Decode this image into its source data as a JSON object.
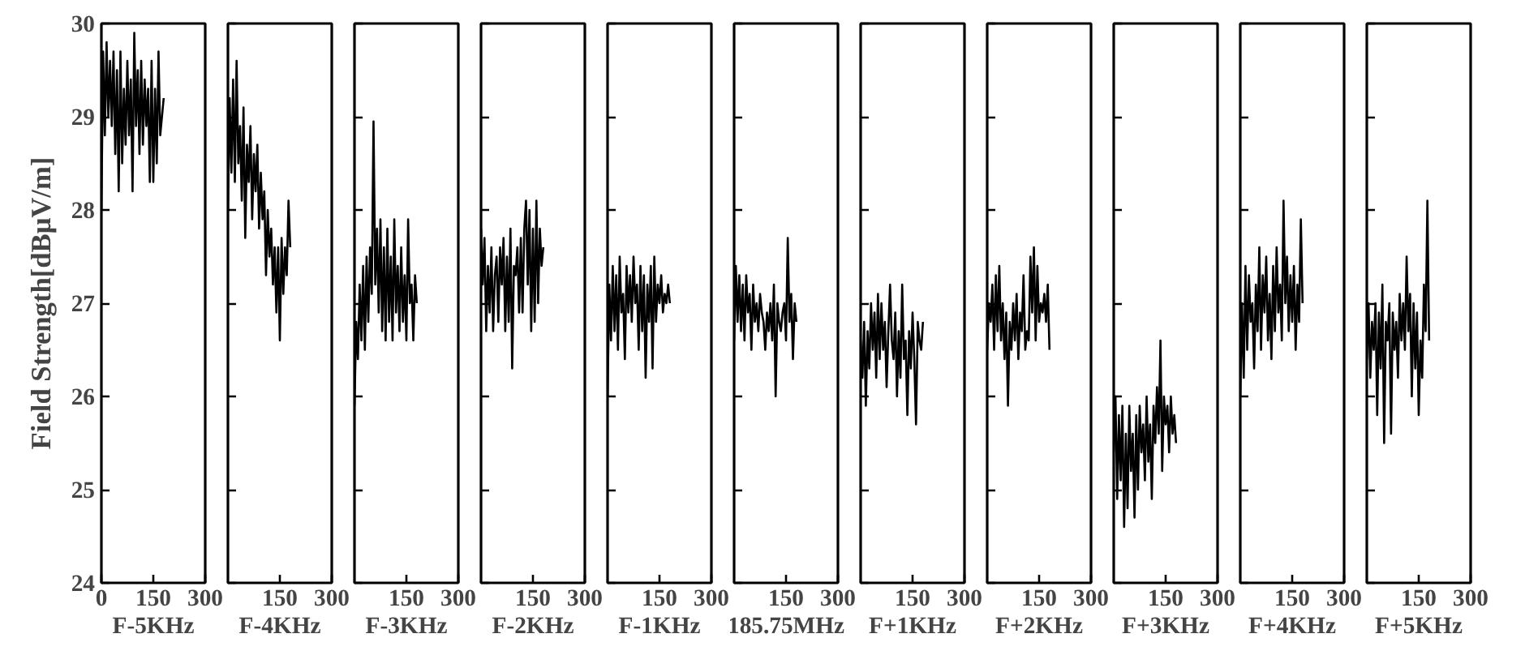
{
  "chart_data": [
    {
      "type": "line",
      "xlabel": "F-5KHz",
      "ylabel": "Field Strength[dBμV/m]",
      "xlim": [
        0,
        300
      ],
      "xticks": [
        0,
        150,
        300
      ],
      "ylim": [
        24,
        30
      ],
      "yticks": [
        24,
        25,
        26,
        27,
        28,
        29,
        30
      ],
      "grid": false,
      "x": [
        0,
        5,
        10,
        15,
        20,
        25,
        30,
        35,
        40,
        45,
        50,
        55,
        60,
        65,
        70,
        75,
        80,
        85,
        90,
        95,
        100,
        105,
        110,
        115,
        120,
        125,
        130,
        135,
        140,
        145,
        150,
        155,
        160,
        165,
        170,
        175,
        180
      ],
      "series": [
        {
          "color": "#000000",
          "values": [
            28.0,
            29.7,
            28.8,
            29.8,
            29.0,
            29.6,
            28.9,
            29.7,
            28.6,
            29.5,
            28.2,
            29.7,
            28.5,
            29.3,
            28.7,
            29.6,
            28.8,
            29.4,
            28.2,
            29.9,
            28.9,
            29.5,
            28.6,
            29.6,
            28.7,
            29.4,
            28.9,
            29.3,
            28.3,
            29.6,
            28.3,
            29.3,
            28.5,
            29.7,
            28.8,
            29.0,
            29.2
          ]
        }
      ]
    },
    {
      "type": "line",
      "xlabel": "F-4KHz",
      "xlim": [
        0,
        300
      ],
      "xticks": [
        150,
        300
      ],
      "ylim": [
        24,
        30
      ],
      "yticks": [
        24,
        25,
        26,
        27,
        28,
        29,
        30
      ],
      "tick_labels": "x",
      "grid": false,
      "x": [
        0,
        5,
        10,
        15,
        20,
        25,
        30,
        35,
        40,
        45,
        50,
        55,
        60,
        65,
        70,
        75,
        80,
        85,
        90,
        95,
        100,
        105,
        110,
        115,
        120,
        125,
        130,
        135,
        140,
        145,
        150,
        155,
        160,
        165,
        170,
        175,
        180
      ],
      "series": [
        {
          "color": "#000000",
          "values": [
            28.0,
            29.2,
            28.4,
            29.4,
            28.3,
            29.6,
            28.5,
            28.9,
            28.1,
            29.1,
            27.7,
            28.7,
            28.3,
            28.9,
            27.9,
            28.6,
            28.2,
            28.7,
            27.8,
            28.4,
            27.9,
            28.2,
            27.3,
            28.0,
            27.5,
            27.8,
            27.2,
            27.6,
            26.9,
            27.6,
            26.6,
            27.7,
            27.1,
            27.6,
            27.3,
            28.1,
            27.6
          ]
        }
      ]
    },
    {
      "type": "line",
      "xlabel": "F-3KHz",
      "xlim": [
        0,
        300
      ],
      "xticks": [
        150,
        300
      ],
      "ylim": [
        24,
        30
      ],
      "yticks": [
        24,
        25,
        26,
        27,
        28,
        29,
        30
      ],
      "tick_labels": "x",
      "grid": false,
      "x": [
        0,
        5,
        10,
        15,
        20,
        25,
        30,
        35,
        40,
        45,
        50,
        55,
        60,
        65,
        70,
        75,
        80,
        85,
        90,
        95,
        100,
        105,
        110,
        115,
        120,
        125,
        130,
        135,
        140,
        145,
        150,
        155,
        160,
        165,
        170,
        175,
        180
      ],
      "series": [
        {
          "color": "#000000",
          "values": [
            25.9,
            26.8,
            26.4,
            27.2,
            26.6,
            27.4,
            26.5,
            27.5,
            26.8,
            27.6,
            27.1,
            28.95,
            27.2,
            27.8,
            26.9,
            27.9,
            26.7,
            27.6,
            26.6,
            27.8,
            26.8,
            27.5,
            26.6,
            27.9,
            26.9,
            27.4,
            26.7,
            27.6,
            26.8,
            27.3,
            26.6,
            27.9,
            27.0,
            27.2,
            26.6,
            27.3,
            27.0
          ]
        }
      ]
    },
    {
      "type": "line",
      "xlabel": "F-2KHz",
      "xlim": [
        0,
        300
      ],
      "xticks": [
        150,
        300
      ],
      "ylim": [
        24,
        30
      ],
      "yticks": [
        24,
        25,
        26,
        27,
        28,
        29,
        30
      ],
      "tick_labels": "x",
      "grid": false,
      "x": [
        0,
        5,
        10,
        15,
        20,
        25,
        30,
        35,
        40,
        45,
        50,
        55,
        60,
        65,
        70,
        75,
        80,
        85,
        90,
        95,
        100,
        105,
        110,
        115,
        120,
        125,
        130,
        135,
        140,
        145,
        150,
        155,
        160,
        165,
        170,
        175,
        180
      ],
      "series": [
        {
          "color": "#000000",
          "values": [
            27.8,
            27.2,
            27.7,
            26.7,
            27.4,
            26.9,
            27.6,
            26.7,
            27.3,
            27.5,
            26.8,
            27.6,
            27.2,
            27.7,
            26.7,
            27.5,
            26.8,
            27.8,
            26.3,
            27.4,
            27.3,
            27.6,
            26.9,
            27.7,
            26.9,
            27.8,
            28.1,
            27.2,
            28.0,
            26.7,
            27.8,
            26.8,
            28.1,
            27.0,
            27.8,
            27.4,
            27.6
          ]
        }
      ]
    },
    {
      "type": "line",
      "xlabel": "F-1KHz",
      "xlim": [
        0,
        300
      ],
      "xticks": [
        150,
        300
      ],
      "ylim": [
        24,
        30
      ],
      "yticks": [
        24,
        25,
        26,
        27,
        28,
        29,
        30
      ],
      "tick_labels": "x",
      "grid": false,
      "x": [
        0,
        5,
        10,
        15,
        20,
        25,
        30,
        35,
        40,
        45,
        50,
        55,
        60,
        65,
        70,
        75,
        80,
        85,
        90,
        95,
        100,
        105,
        110,
        115,
        120,
        125,
        130,
        135,
        140,
        145,
        150,
        155,
        160,
        165,
        170,
        175,
        180
      ],
      "series": [
        {
          "color": "#000000",
          "values": [
            26.0,
            27.2,
            26.6,
            27.4,
            26.7,
            27.3,
            26.5,
            27.5,
            26.9,
            27.1,
            26.4,
            27.4,
            26.9,
            27.3,
            26.8,
            27.5,
            27.0,
            27.2,
            26.5,
            27.4,
            26.7,
            27.3,
            26.2,
            27.2,
            26.8,
            27.4,
            26.3,
            27.5,
            26.8,
            27.2,
            27.0,
            27.3,
            26.9,
            27.1,
            27.0,
            27.2,
            27.0
          ]
        }
      ]
    },
    {
      "type": "line",
      "xlabel": "185.75MHz",
      "xlim": [
        0,
        300
      ],
      "xticks": [
        150,
        300
      ],
      "ylim": [
        24,
        30
      ],
      "yticks": [
        24,
        25,
        26,
        27,
        28,
        29,
        30
      ],
      "tick_labels": "x",
      "grid": false,
      "x": [
        0,
        5,
        10,
        15,
        20,
        25,
        30,
        35,
        40,
        45,
        50,
        55,
        60,
        65,
        70,
        75,
        80,
        85,
        90,
        95,
        100,
        105,
        110,
        115,
        120,
        125,
        130,
        135,
        140,
        145,
        150,
        155,
        160,
        165,
        170,
        175,
        180
      ],
      "series": [
        {
          "color": "#000000",
          "values": [
            26.6,
            27.4,
            26.8,
            27.3,
            26.7,
            27.2,
            26.6,
            27.3,
            26.9,
            27.1,
            26.5,
            27.2,
            26.8,
            27.0,
            26.7,
            27.1,
            26.9,
            26.8,
            26.5,
            26.9,
            26.7,
            27.0,
            26.6,
            27.2,
            26.0,
            27.0,
            26.8,
            26.7,
            26.9,
            27.0,
            26.6,
            27.7,
            26.8,
            27.1,
            26.4,
            27.0,
            26.8
          ]
        }
      ]
    },
    {
      "type": "line",
      "xlabel": "F+1KHz",
      "xlim": [
        0,
        300
      ],
      "xticks": [
        150,
        300
      ],
      "ylim": [
        24,
        30
      ],
      "yticks": [
        24,
        25,
        26,
        27,
        28,
        29,
        30
      ],
      "tick_labels": "x",
      "grid": false,
      "x": [
        0,
        5,
        10,
        15,
        20,
        25,
        30,
        35,
        40,
        45,
        50,
        55,
        60,
        65,
        70,
        75,
        80,
        85,
        90,
        95,
        100,
        105,
        110,
        115,
        120,
        125,
        130,
        135,
        140,
        145,
        150,
        155,
        160,
        165,
        170,
        175,
        180
      ],
      "series": [
        {
          "color": "#000000",
          "values": [
            26.6,
            26.2,
            26.8,
            25.9,
            26.7,
            26.3,
            27.0,
            26.5,
            26.9,
            26.2,
            27.1,
            26.4,
            27.0,
            26.5,
            26.8,
            26.1,
            26.7,
            27.2,
            26.6,
            26.4,
            26.9,
            26.0,
            26.7,
            26.2,
            27.2,
            26.4,
            26.6,
            25.8,
            26.7,
            26.3,
            26.9,
            26.4,
            25.7,
            26.8,
            26.6,
            26.5,
            26.8
          ]
        }
      ]
    },
    {
      "type": "line",
      "xlabel": "F+2KHz",
      "xlim": [
        0,
        300
      ],
      "xticks": [
        150,
        300
      ],
      "ylim": [
        24,
        30
      ],
      "yticks": [
        24,
        25,
        26,
        27,
        28,
        29,
        30
      ],
      "tick_labels": "x",
      "grid": false,
      "x": [
        0,
        5,
        10,
        15,
        20,
        25,
        30,
        35,
        40,
        45,
        50,
        55,
        60,
        65,
        70,
        75,
        80,
        85,
        90,
        95,
        100,
        105,
        110,
        115,
        120,
        125,
        130,
        135,
        140,
        145,
        150,
        155,
        160,
        165,
        170,
        175,
        180
      ],
      "series": [
        {
          "color": "#000000",
          "values": [
            26.5,
            27.0,
            26.8,
            27.2,
            26.5,
            27.3,
            26.7,
            27.4,
            26.6,
            27.0,
            26.4,
            26.9,
            25.9,
            26.8,
            26.5,
            27.0,
            26.6,
            27.1,
            26.4,
            26.9,
            26.7,
            27.3,
            26.5,
            26.7,
            26.6,
            27.5,
            26.9,
            27.6,
            26.6,
            27.4,
            26.8,
            27.0,
            26.9,
            27.1,
            26.8,
            27.2,
            26.5
          ]
        }
      ]
    },
    {
      "type": "line",
      "xlabel": "F+3KHz",
      "xlim": [
        0,
        300
      ],
      "xticks": [
        150,
        300
      ],
      "ylim": [
        24,
        30
      ],
      "yticks": [
        24,
        25,
        26,
        27,
        28,
        29,
        30
      ],
      "tick_labels": "x",
      "grid": false,
      "x": [
        0,
        5,
        10,
        15,
        20,
        25,
        30,
        35,
        40,
        45,
        50,
        55,
        60,
        65,
        70,
        75,
        80,
        85,
        90,
        95,
        100,
        105,
        110,
        115,
        120,
        125,
        130,
        135,
        140,
        145,
        150,
        155,
        160,
        165,
        170,
        175,
        180
      ],
      "series": [
        {
          "color": "#000000",
          "values": [
            25.4,
            26.0,
            24.9,
            25.8,
            25.1,
            25.9,
            24.6,
            25.6,
            24.8,
            25.9,
            25.2,
            25.6,
            24.7,
            25.8,
            25.0,
            25.9,
            25.4,
            25.7,
            25.1,
            26.0,
            25.3,
            25.7,
            24.9,
            25.9,
            25.5,
            26.1,
            25.6,
            26.6,
            25.2,
            26.0,
            25.7,
            25.9,
            25.4,
            26.0,
            25.6,
            25.8,
            25.5
          ]
        }
      ]
    },
    {
      "type": "line",
      "xlabel": "F+4KHz",
      "xlim": [
        0,
        300
      ],
      "xticks": [
        150,
        300
      ],
      "ylim": [
        24,
        30
      ],
      "yticks": [
        24,
        25,
        26,
        27,
        28,
        29,
        30
      ],
      "tick_labels": "x",
      "grid": false,
      "x": [
        0,
        5,
        10,
        15,
        20,
        25,
        30,
        35,
        40,
        45,
        50,
        55,
        60,
        65,
        70,
        75,
        80,
        85,
        90,
        95,
        100,
        105,
        110,
        115,
        120,
        125,
        130,
        135,
        140,
        145,
        150,
        155,
        160,
        165,
        170,
        175,
        180
      ],
      "series": [
        {
          "color": "#000000",
          "values": [
            26.0,
            27.0,
            26.2,
            27.4,
            26.5,
            27.3,
            26.8,
            27.0,
            26.3,
            27.2,
            26.7,
            27.6,
            26.5,
            27.3,
            26.9,
            27.5,
            26.6,
            27.1,
            26.4,
            27.4,
            26.7,
            27.6,
            26.9,
            27.2,
            26.6,
            28.1,
            27.0,
            27.5,
            26.7,
            27.3,
            26.8,
            27.4,
            26.5,
            27.2,
            26.8,
            27.9,
            27.0
          ]
        }
      ]
    },
    {
      "type": "line",
      "xlabel": "F+5KHz",
      "xlim": [
        0,
        300
      ],
      "xticks": [
        150,
        300
      ],
      "ylim": [
        24,
        30
      ],
      "yticks": [
        24,
        25,
        26,
        27,
        28,
        29,
        30
      ],
      "tick_labels": "x",
      "grid": false,
      "x": [
        0,
        5,
        10,
        15,
        20,
        25,
        30,
        35,
        40,
        45,
        50,
        55,
        60,
        65,
        70,
        75,
        80,
        85,
        90,
        95,
        100,
        105,
        110,
        115,
        120,
        125,
        130,
        135,
        140,
        145,
        150,
        155,
        160,
        165,
        170,
        175,
        180
      ],
      "series": [
        {
          "color": "#000000",
          "values": [
            26.4,
            27.0,
            26.2,
            26.8,
            26.5,
            27.0,
            25.8,
            26.9,
            26.3,
            27.2,
            25.5,
            26.8,
            26.6,
            27.0,
            25.6,
            26.9,
            26.5,
            26.8,
            26.2,
            27.1,
            26.6,
            27.0,
            26.5,
            27.5,
            26.7,
            27.1,
            26.0,
            27.0,
            26.3,
            26.9,
            25.8,
            26.6,
            26.2,
            27.2,
            26.7,
            28.1,
            26.6
          ]
        }
      ]
    }
  ]
}
